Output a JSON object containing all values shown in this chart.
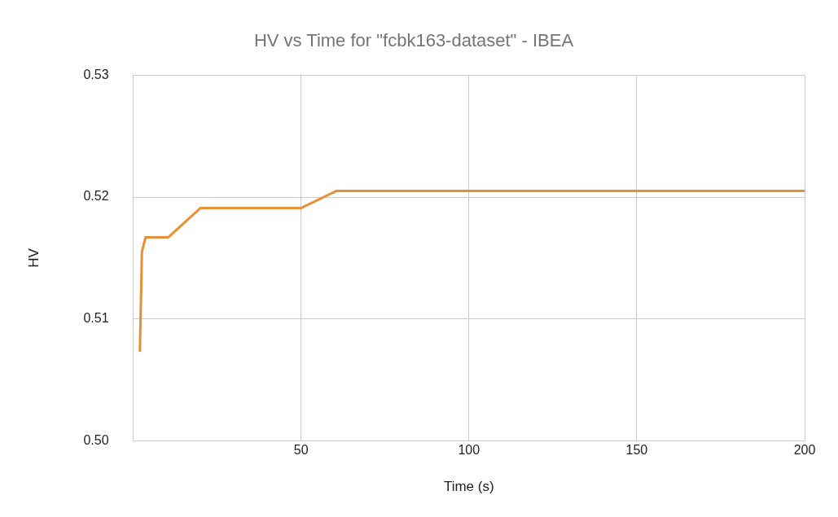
{
  "chart_data": {
    "type": "line",
    "title": "HV vs Time for \"fcbk163-dataset\" - IBEA",
    "xlabel": "Time (s)",
    "ylabel": "HV",
    "x": [
      2,
      2.6,
      3.7,
      10.5,
      20,
      50,
      60.5,
      200
    ],
    "series": [
      {
        "color": "#e69138",
        "values": [
          0.5073,
          0.5155,
          0.5167,
          0.5167,
          0.5191,
          0.5191,
          0.5205,
          0.5205
        ]
      }
    ],
    "xlim": [
      0,
      200
    ],
    "xticks": [
      50,
      100,
      150,
      200
    ],
    "ylim": [
      0.5,
      0.53
    ],
    "yticks": [
      {
        "value": 0.5,
        "label": "0.50"
      },
      0.51,
      0.52,
      0.53
    ],
    "grid": true,
    "legend": false,
    "marker": "none",
    "line_style": "solid"
  }
}
